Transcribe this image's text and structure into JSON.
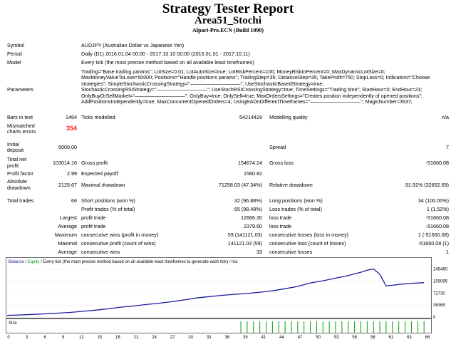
{
  "header": {
    "title": "Strategy Tester Report",
    "expert": "Area51_Stochi",
    "server": "Alpari-Pro.ECN (Build 1090)"
  },
  "info": {
    "symbol_label": "Symbol",
    "symbol_value": "AUDJPY (Australian Dollar vs Japanese Yen)",
    "period_label": "Period",
    "period_value": "Daily (D1) 2016.01.04 00:00 - 2017.10.10 00:00 (2016.01.01 - 2017.10.11)",
    "model_label": "Model",
    "model_value": "Every tick (the most precise method based on all available least timeframes)",
    "params_label": "Parameters",
    "params_value": "Trading=\"Base trading params\"; LotSize=0.01; LotAutoSize=true; LotRiskPercent=100; MoneyRiskInPercent=0; MaxDynamicLotSize=0; MaxMoneyValueToLose=50000; Positions=\"Handle positions params\"; TrailingStep=35; DistanceStep=35; TakeProfit=750; StopLoss=0; Indicators=\"Choose strategies\"; SimpleStochasticCrossingStrategy=\"——————————\"; UseStochasticBasedStrategy=true; StochasticCrossingRSIStrategy=\"——————————\"; UseStochRSICroosingStrategy=true; TimeSettings=\"Trading time\"; StartHour=0; EndHour=23; OnlyBuyOrSellMarket=\"——————————\"; OnlyBuy=true; OnlySell=true; MaxOrdersSettings=\"Creates position independently of opened positions\"; AddPositionsIndependently=true; MaxConcurrentOpenedOrders=4; UsingEAOnDifferentTimeframes=\"——————————\"; MagicNumber=3537;"
  },
  "stats": {
    "bars_label": "Bars in test",
    "bars": "1464",
    "ticks_label": "Ticks modelled",
    "ticks": "54214429",
    "quality_label": "Modelling quality",
    "quality": "n/a",
    "mismatch_label_1": "Mismatched",
    "mismatch_label_2": "charts errors",
    "mismatch": "354",
    "deposit_label_1": "Initial",
    "deposit_label_2": "deposit",
    "deposit": "5000.00",
    "spread_label": "Spread",
    "spread": "7",
    "net_label_1": "Total net",
    "net_label_2": "profit",
    "net": "103014.16",
    "gross_profit_label": "Gross profit",
    "gross_profit": "154674.24",
    "gross_loss_label": "Gross loss",
    "gross_loss": "-51660.08",
    "pf_label": "Profit factor",
    "pf": "2.99",
    "payoff_label": "Expected payoff",
    "payoff": "1560.82",
    "abs_dd_label_1": "Absolute",
    "abs_dd_label_2": "drawdown",
    "abs_dd": "2125.67",
    "max_dd_label": "Maximal drawdown",
    "max_dd": "71258.03 (47.34%)",
    "rel_dd_label": "Relative drawdown",
    "rel_dd": "91.91% (32652.69)",
    "trades_label": "Total trades",
    "trades": "66",
    "short_label": "Short positions (won %)",
    "short": "32 (96.88%)",
    "long_label": "Long positions (won %)",
    "long": "34 (100.00%)",
    "profit_trades_label": "Profit trades (% of total)",
    "profit_trades": "65 (98.48%)",
    "loss_trades_label": "Loss trades (% of total)",
    "loss_trades": "1 (1.52%)",
    "largest_label": "Largest",
    "avg_label": "Average",
    "max_label": "Maximum",
    "maximal_label": "Maximal",
    "avg2_label": "Average",
    "largest_profit_label": "profit trade",
    "largest_profit": "12666.30",
    "largest_loss_label": "loss trade",
    "largest_loss": "-51660.08",
    "avg_profit_label": "profit trade",
    "avg_profit": "2379.60",
    "avg_loss_label": "loss trade",
    "avg_loss": "-51660.08",
    "max_cw_label": "consecutive wins (profit in money)",
    "max_cw": "59 (141121.03)",
    "max_cl_label": "consecutive losses (loss in money)",
    "max_cl": "1 (-51660.08)",
    "maximal_cp_label": "consecutive profit (count of wins)",
    "maximal_cp": "141121.03 (59)",
    "maximal_cl_label": "consecutive loss (count of losses)",
    "maximal_cl": "-51660.08 (1)",
    "avg_cw_label": "consecutive wins",
    "avg_cw": "33",
    "avg_cl_label": "consecutive losses",
    "avg_cl": "1"
  },
  "chart_data": {
    "type": "line",
    "legend_balance": "Balance",
    "legend_sep": " / ",
    "legend_equity": "Equity",
    "legend_rest": " / Every tick (the most precise method based on all available least timeframes to generate each tick) / n/a",
    "size_label": "Size",
    "y_ticks": [
      "145460",
      "109095",
      "72730",
      "36365",
      "0"
    ],
    "y_tick_values": [
      145460,
      109095,
      72730,
      36365,
      0
    ],
    "ylim": [
      0,
      160000
    ],
    "x_ticks": [
      "0",
      "3",
      "6",
      "9",
      "12",
      "15",
      "18",
      "21",
      "24",
      "27",
      "30",
      "33",
      "36",
      "39",
      "41",
      "44",
      "47",
      "50",
      "53",
      "56",
      "58",
      "61",
      "63",
      "66"
    ],
    "xlim": [
      0,
      67
    ],
    "balance_color": "#1a1aa0",
    "equity_color": "#1a1aa0",
    "size_color": "#00a000",
    "series": [
      {
        "name": "Balance",
        "x": [
          0,
          2,
          4,
          6,
          8,
          10,
          12,
          14,
          16,
          18,
          20,
          22,
          24,
          26,
          28,
          30,
          32,
          34,
          36,
          38,
          40,
          42,
          44,
          46,
          48,
          50,
          52,
          54,
          56,
          57,
          58,
          59,
          60,
          61,
          62,
          64,
          66
        ],
        "values": [
          5000,
          6500,
          8000,
          9800,
          11800,
          14000,
          17500,
          21000,
          25000,
          30000,
          33500,
          38000,
          42000,
          46500,
          52000,
          58000,
          62000,
          66000,
          69000,
          71500,
          75500,
          79500,
          86000,
          93000,
          103500,
          110000,
          118000,
          126000,
          136000,
          142000,
          146100,
          130000,
          94500,
          96500,
          99000,
          102500,
          104300
        ]
      }
    ],
    "size_bars_start_index": 37,
    "size_bars_count": 30,
    "size_bar_values": [
      1,
      1,
      1,
      1,
      1,
      1,
      1,
      1,
      1,
      1,
      1,
      1,
      1,
      1,
      1,
      1,
      1,
      1,
      1,
      1,
      1,
      1,
      1,
      1,
      1,
      1,
      1,
      1,
      1,
      1
    ]
  }
}
